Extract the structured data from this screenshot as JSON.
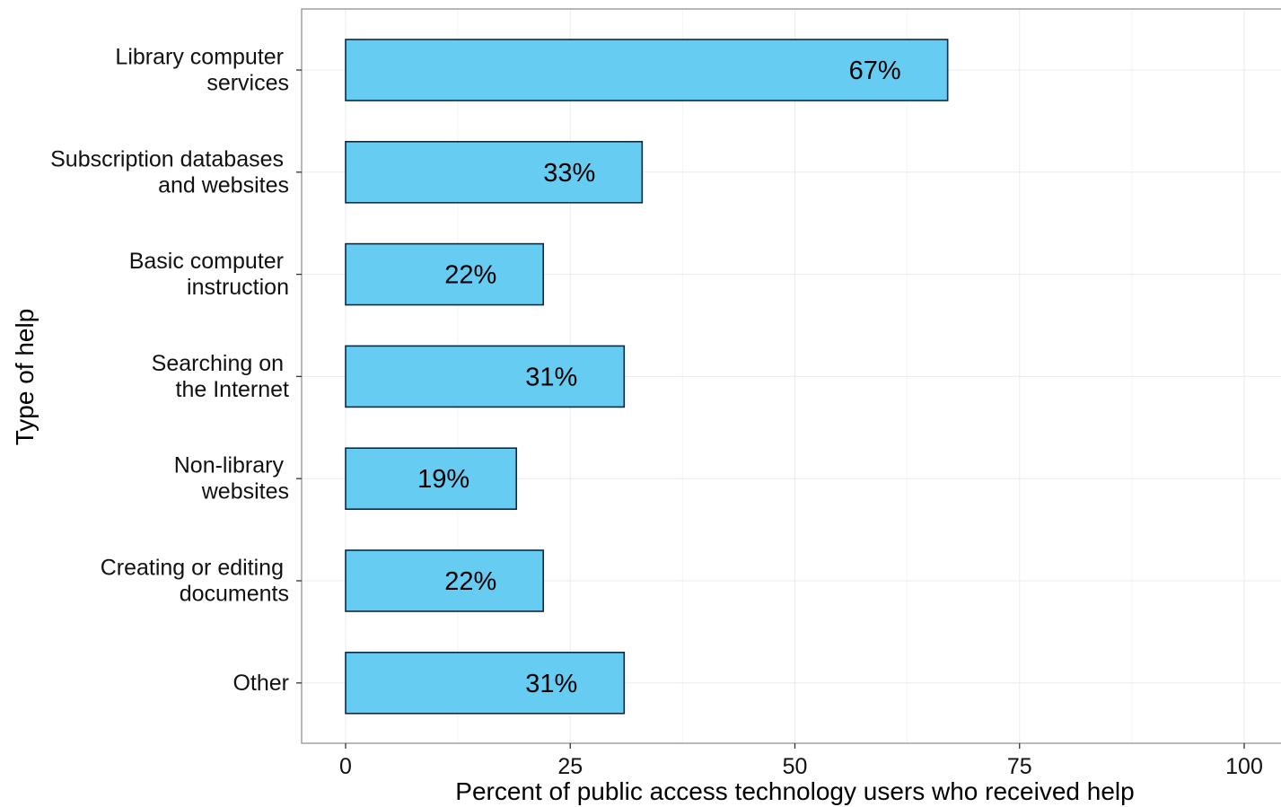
{
  "chart_data": {
    "type": "bar",
    "orientation": "horizontal",
    "categories": [
      [
        "Library computer",
        "services"
      ],
      [
        "Subscription databases",
        "and websites"
      ],
      [
        "Basic computer",
        "instruction"
      ],
      [
        "Searching on",
        "the Internet"
      ],
      [
        "Non-library",
        "websites"
      ],
      [
        "Creating or editing",
        "documents"
      ],
      [
        "Other"
      ]
    ],
    "values": [
      67,
      33,
      22,
      31,
      19,
      22,
      31
    ],
    "data_labels": [
      "67%",
      "33%",
      "22%",
      "31%",
      "19%",
      "22%",
      "31%"
    ],
    "xlabel": "Percent of public access technology users who received help",
    "ylabel": "Type of help",
    "xlim": [
      0,
      100
    ],
    "x_ticks": [
      0,
      25,
      50,
      75,
      100
    ],
    "x_tick_labels": [
      "0",
      "25",
      "50",
      "75",
      "100"
    ],
    "grid": true,
    "legend": "none",
    "colors": {
      "bar_fill": "#66ccf2",
      "bar_outline": "#0a2a44",
      "panel_border": "#8a8a8a",
      "grid_major": "#ebebeb"
    }
  }
}
